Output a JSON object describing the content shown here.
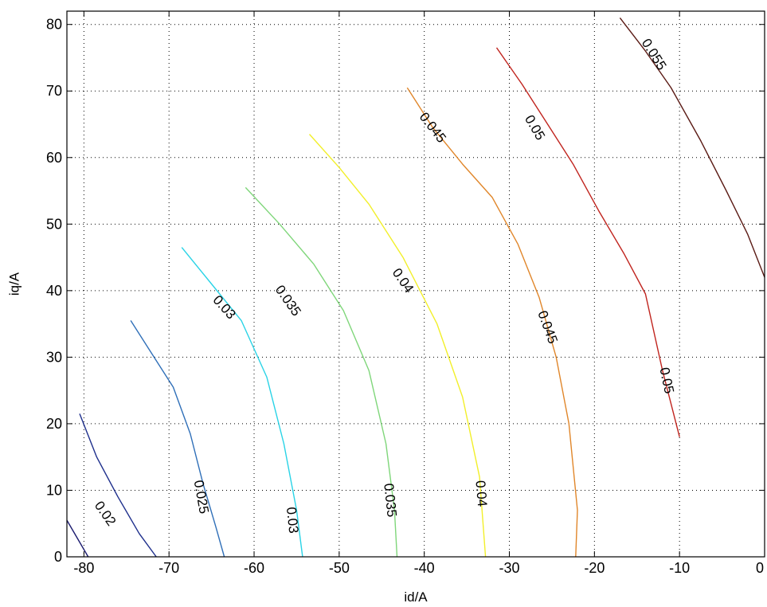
{
  "chart_data": {
    "type": "contour",
    "xlabel": "id/A",
    "ylabel": "iq/A",
    "xlim": [
      -82,
      0
    ],
    "ylim": [
      0,
      82
    ],
    "xticks": [
      -80,
      -70,
      -60,
      -50,
      -40,
      -30,
      -20,
      -10,
      0
    ],
    "yticks": [
      0,
      10,
      20,
      30,
      40,
      50,
      60,
      70,
      80
    ],
    "xtick_labels": [
      "-80",
      "-70",
      "-60",
      "-50",
      "-40",
      "-30",
      "-20",
      "-10",
      "0"
    ],
    "ytick_labels": [
      "0",
      "10",
      "20",
      "30",
      "40",
      "50",
      "60",
      "70",
      "80"
    ],
    "grid": true,
    "grid_style": "dotted",
    "contours": [
      {
        "level": "0.02",
        "color": "#1a1a6e",
        "x": [
          -82,
          -79.5
        ],
        "y": [
          5.5,
          0
        ]
      },
      {
        "level": "0.02",
        "color": "#1e2f8c",
        "x": [
          -80.5,
          -78.5,
          -76,
          -73.5,
          -71.5
        ],
        "y": [
          21.5,
          15,
          9,
          3.5,
          0
        ]
      },
      {
        "level": "0.025",
        "color": "#2f6fb8",
        "x": [
          -74.5,
          -72,
          -69.5,
          -67.5,
          -66,
          -64.5,
          -63.5
        ],
        "y": [
          35.5,
          30.5,
          25.5,
          18.5,
          11,
          4.5,
          0
        ]
      },
      {
        "level": "0.03",
        "color": "#29d3e6",
        "x": [
          -68.5,
          -65,
          -61.5,
          -58.5,
          -56.5,
          -55,
          -54.3
        ],
        "y": [
          46.5,
          41,
          35.5,
          27,
          17,
          7,
          0
        ]
      },
      {
        "level": "0.035",
        "color": "#7fd67a",
        "x": [
          -61,
          -57,
          -53,
          -49.5,
          -46.5,
          -44.5,
          -43.5,
          -43.2
        ],
        "y": [
          55.5,
          50,
          44,
          37,
          28,
          17,
          7,
          0
        ]
      },
      {
        "level": "0.04",
        "color": "#f2ef2a",
        "x": [
          -53.5,
          -50,
          -46.5,
          -42.5,
          -38.5,
          -35.5,
          -33.5,
          -32.8
        ],
        "y": [
          63.5,
          58.5,
          53,
          45,
          35,
          24,
          12,
          0
        ]
      },
      {
        "level": "0.045",
        "color": "#e0862a",
        "x": [
          -42,
          -39,
          -35.5,
          -32,
          -29,
          -26.5,
          -24.5,
          -23,
          -22,
          -22.2
        ],
        "y": [
          70.5,
          64.5,
          59,
          54,
          47,
          39,
          30,
          20,
          7,
          0
        ]
      },
      {
        "level": "0.05",
        "color": "#c0241e",
        "x": [
          -31.5,
          -28.5,
          -25.5,
          -22.5,
          -19.5,
          -16.5,
          -14,
          -12,
          -10
        ],
        "y": [
          76.5,
          71,
          65,
          59,
          52,
          45.5,
          39.5,
          28,
          18
        ]
      },
      {
        "level": "0.055",
        "color": "#5a1a14",
        "x": [
          -17,
          -14,
          -11,
          -7.5,
          -4.5,
          -2,
          0
        ],
        "y": [
          81,
          76,
          70.5,
          62.5,
          55,
          48.5,
          42
        ]
      }
    ],
    "labels": [
      {
        "text": "0.02",
        "x": -77.5,
        "y": 6.5,
        "angle": 55
      },
      {
        "text": "0.025",
        "x": -66.2,
        "y": 9,
        "angle": 80
      },
      {
        "text": "0.03",
        "x": -63.5,
        "y": 37.5,
        "angle": 48
      },
      {
        "text": "0.03",
        "x": -55.5,
        "y": 5.5,
        "angle": 84
      },
      {
        "text": "0.035",
        "x": -56,
        "y": 38.5,
        "angle": 55
      },
      {
        "text": "0.035",
        "x": -44,
        "y": 8.5,
        "angle": 84
      },
      {
        "text": "0.04",
        "x": -42.5,
        "y": 41.5,
        "angle": 55
      },
      {
        "text": "0.04",
        "x": -33.3,
        "y": 9.5,
        "angle": 85
      },
      {
        "text": "0.045",
        "x": -39,
        "y": 64.5,
        "angle": 52
      },
      {
        "text": "0.045",
        "x": -25.5,
        "y": 34.5,
        "angle": 70
      },
      {
        "text": "0.05",
        "x": -27,
        "y": 64.5,
        "angle": 60
      },
      {
        "text": "0.05",
        "x": -11.5,
        "y": 26.5,
        "angle": 78
      },
      {
        "text": "0.055",
        "x": -13,
        "y": 75.5,
        "angle": 58
      }
    ]
  }
}
